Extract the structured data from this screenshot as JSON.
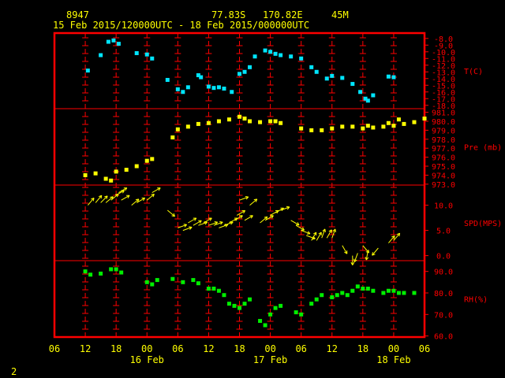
{
  "header": {
    "station_id": "8947",
    "lat": "77.83S",
    "lon": "170.82E",
    "elevation": "45M",
    "time_range": "15 Feb 2015/120000UTC - 18 Feb 2015/000000UTC"
  },
  "footer": {
    "page_number": "2"
  },
  "colors": {
    "frame": "#ff0000",
    "grid": "#ff0000",
    "text": "#ffff00",
    "axis_text": "#ff0000",
    "temperature": "#00e5ff",
    "pressure": "#ffff00",
    "wind": "#ffff00",
    "humidity": "#00ee00"
  },
  "chart_data": {
    "type": "scatter",
    "x_unit": "hours since 15 Feb 2015 12:00 UTC",
    "x_range": [
      -6,
      66
    ],
    "x_tick_labels": [
      {
        "x": -6,
        "label": "06"
      },
      {
        "x": 0,
        "label": "12"
      },
      {
        "x": 6,
        "label": "18"
      },
      {
        "x": 12,
        "label": "00"
      },
      {
        "x": 18,
        "label": "06"
      },
      {
        "x": 24,
        "label": "12"
      },
      {
        "x": 30,
        "label": "18"
      },
      {
        "x": 36,
        "label": "00"
      },
      {
        "x": 42,
        "label": "06"
      },
      {
        "x": 48,
        "label": "12"
      },
      {
        "x": 54,
        "label": "18"
      },
      {
        "x": 60,
        "label": "00"
      },
      {
        "x": 66,
        "label": "06"
      }
    ],
    "date_labels": [
      {
        "x": 12,
        "label": "16 Feb"
      },
      {
        "x": 36,
        "label": "17 Feb"
      },
      {
        "x": 60,
        "label": "18 Feb"
      }
    ],
    "panels": [
      {
        "name": "temperature",
        "label": "T(C)",
        "y_range": [
          -18.5,
          -7.2
        ],
        "ticks": [
          {
            "v": -8,
            "label": "-8.0"
          },
          {
            "v": -9,
            "label": "-9.0"
          },
          {
            "v": -10,
            "label": "-10.0"
          },
          {
            "v": -11,
            "label": "-11.0"
          },
          {
            "v": -12,
            "label": "-12.0"
          },
          {
            "v": -13,
            "label": "-13.0"
          },
          {
            "v": -14,
            "label": "-14.0"
          },
          {
            "v": -15,
            "label": "-15.0"
          },
          {
            "v": -16,
            "label": "-16.0"
          },
          {
            "v": -17,
            "label": "-17.0"
          },
          {
            "v": -18,
            "label": "-18.0"
          }
        ],
        "points": [
          [
            0.5,
            -12.8
          ],
          [
            3,
            -10.5
          ],
          [
            4.5,
            -8.5
          ],
          [
            5.5,
            -8.3
          ],
          [
            6.5,
            -8.8
          ],
          [
            10,
            -10.2
          ],
          [
            12,
            -10.4
          ],
          [
            13,
            -11
          ],
          [
            16,
            -14.2
          ],
          [
            18,
            -15.6
          ],
          [
            19,
            -16
          ],
          [
            20,
            -15.3
          ],
          [
            22,
            -13.5
          ],
          [
            22.5,
            -13.8
          ],
          [
            24,
            -15.2
          ],
          [
            25,
            -15.4
          ],
          [
            26,
            -15.3
          ],
          [
            27,
            -15.5
          ],
          [
            28.5,
            -16
          ],
          [
            30,
            -13.3
          ],
          [
            31,
            -13
          ],
          [
            32,
            -12.3
          ],
          [
            33,
            -10.7
          ],
          [
            35,
            -9.8
          ],
          [
            36,
            -10
          ],
          [
            37,
            -10.3
          ],
          [
            38,
            -10.5
          ],
          [
            40,
            -10.7
          ],
          [
            42,
            -11
          ],
          [
            44,
            -12.3
          ],
          [
            45,
            -13
          ],
          [
            47,
            -14
          ],
          [
            48,
            -13.6
          ],
          [
            50,
            -13.9
          ],
          [
            52,
            -14.8
          ],
          [
            53.5,
            -16
          ],
          [
            54.5,
            -17
          ],
          [
            55,
            -17.3
          ],
          [
            56,
            -16.5
          ],
          [
            59,
            -13.7
          ],
          [
            60,
            -13.8
          ]
        ]
      },
      {
        "name": "pressure",
        "label": "Pre (mb)",
        "y_range": [
          972.9,
          981.4
        ],
        "ticks": [
          {
            "v": 973,
            "label": "973.0"
          },
          {
            "v": 974,
            "label": "974.0"
          },
          {
            "v": 975,
            "label": "975.0"
          },
          {
            "v": 976,
            "label": "976.0"
          },
          {
            "v": 977,
            "label": "977.0"
          },
          {
            "v": 978,
            "label": "978.0"
          },
          {
            "v": 979,
            "label": "979.0"
          },
          {
            "v": 980,
            "label": "980.0"
          },
          {
            "v": 981,
            "label": "981.0"
          }
        ],
        "points": [
          [
            0,
            974
          ],
          [
            2,
            974.2
          ],
          [
            4,
            973.6
          ],
          [
            5,
            973.4
          ],
          [
            6,
            974.4
          ],
          [
            8,
            974.6
          ],
          [
            10,
            975
          ],
          [
            12,
            975.6
          ],
          [
            13,
            975.8
          ],
          [
            17,
            978.2
          ],
          [
            18,
            979.1
          ],
          [
            20,
            979.4
          ],
          [
            22,
            979.7
          ],
          [
            24,
            979.8
          ],
          [
            26,
            980
          ],
          [
            28,
            980.2
          ],
          [
            30,
            980.5
          ],
          [
            31,
            980.3
          ],
          [
            32,
            980
          ],
          [
            34,
            979.9
          ],
          [
            36,
            980
          ],
          [
            37,
            980
          ],
          [
            38,
            979.8
          ],
          [
            42,
            979.2
          ],
          [
            44,
            979
          ],
          [
            46,
            979
          ],
          [
            48,
            979.2
          ],
          [
            50,
            979.4
          ],
          [
            52,
            979.4
          ],
          [
            54,
            979.2
          ],
          [
            56,
            979.3
          ],
          [
            58,
            979.4
          ],
          [
            60,
            979.5
          ],
          [
            62,
            979.7
          ],
          [
            64,
            979.9
          ],
          [
            66,
            980.3
          ],
          [
            55,
            979.5
          ],
          [
            59,
            979.8
          ],
          [
            61,
            980.2
          ]
        ]
      },
      {
        "name": "wind_speed",
        "label": "SPD(MPS)",
        "y_range": [
          -1,
          14
        ],
        "ticks": [
          {
            "v": 0,
            "label": "0.0"
          },
          {
            "v": 5,
            "label": "5.0"
          },
          {
            "v": 10,
            "label": "10.0"
          }
        ],
        "vectors": [
          [
            0.5,
            10,
            40
          ],
          [
            2,
            10.5,
            40
          ],
          [
            3,
            10.5,
            45
          ],
          [
            4,
            10.5,
            50
          ],
          [
            5,
            11,
            50
          ],
          [
            6,
            12,
            60
          ],
          [
            6.5,
            12.5,
            60
          ],
          [
            7,
            11,
            60
          ],
          [
            9,
            10,
            50
          ],
          [
            10,
            10.5,
            60
          ],
          [
            12,
            11,
            50
          ],
          [
            13,
            12.5,
            60
          ],
          [
            16,
            9,
            130
          ],
          [
            18,
            5.5,
            70
          ],
          [
            19,
            5,
            70
          ],
          [
            20,
            6.5,
            60
          ],
          [
            21,
            6,
            60
          ],
          [
            22,
            6,
            70
          ],
          [
            23,
            6.5,
            60
          ],
          [
            24,
            6,
            70
          ],
          [
            25,
            6,
            70
          ],
          [
            26,
            5.5,
            70
          ],
          [
            27,
            6,
            70
          ],
          [
            28,
            6.5,
            60
          ],
          [
            29,
            7,
            60
          ],
          [
            29.5,
            8,
            60
          ],
          [
            30,
            11,
            70
          ],
          [
            31,
            7,
            60
          ],
          [
            32,
            10,
            50
          ],
          [
            34,
            6.5,
            50
          ],
          [
            35,
            7,
            60
          ],
          [
            36,
            8,
            60
          ],
          [
            37,
            8.5,
            60
          ],
          [
            38,
            9,
            70
          ],
          [
            40,
            7,
            120
          ],
          [
            41,
            6,
            120
          ],
          [
            42,
            5,
            110
          ],
          [
            43,
            4,
            110
          ],
          [
            44,
            3,
            30
          ],
          [
            45,
            3,
            30
          ],
          [
            46,
            3.5,
            20
          ],
          [
            47,
            3.5,
            30
          ],
          [
            48,
            3.5,
            20
          ],
          [
            50,
            2,
            150
          ],
          [
            52,
            0,
            180
          ],
          [
            53,
            0.5,
            200
          ],
          [
            54,
            2,
            140
          ],
          [
            55,
            1,
            190
          ],
          [
            57,
            1.5,
            220
          ],
          [
            59,
            2.5,
            40
          ],
          [
            60,
            3,
            40
          ]
        ]
      },
      {
        "name": "humidity",
        "label": "RH(%)",
        "y_range": [
          59.5,
          95
        ],
        "ticks": [
          {
            "v": 60,
            "label": "60.0"
          },
          {
            "v": 70,
            "label": "70.0"
          },
          {
            "v": 80,
            "label": "80.0"
          },
          {
            "v": 90,
            "label": "90.0"
          }
        ],
        "points": [
          [
            0,
            90
          ],
          [
            1,
            88.5
          ],
          [
            3,
            89
          ],
          [
            5,
            91
          ],
          [
            6,
            91
          ],
          [
            7,
            89.5
          ],
          [
            12,
            85
          ],
          [
            13,
            84
          ],
          [
            14,
            86
          ],
          [
            17,
            86.5
          ],
          [
            19,
            85
          ],
          [
            21,
            86
          ],
          [
            22,
            84.5
          ],
          [
            24,
            82
          ],
          [
            25,
            82
          ],
          [
            26,
            81
          ],
          [
            27,
            79
          ],
          [
            28,
            75
          ],
          [
            29,
            74
          ],
          [
            30,
            73
          ],
          [
            31,
            75
          ],
          [
            32,
            77
          ],
          [
            34,
            67
          ],
          [
            35,
            65
          ],
          [
            36,
            70
          ],
          [
            37,
            73
          ],
          [
            38,
            74
          ],
          [
            41,
            71
          ],
          [
            42,
            70
          ],
          [
            44,
            75
          ],
          [
            45,
            77
          ],
          [
            46,
            79
          ],
          [
            48,
            78
          ],
          [
            49,
            79
          ],
          [
            50,
            80
          ],
          [
            51,
            79
          ],
          [
            52,
            81
          ],
          [
            53,
            83
          ],
          [
            54,
            82
          ],
          [
            55,
            82
          ],
          [
            56,
            81
          ],
          [
            58,
            80
          ],
          [
            59,
            81
          ],
          [
            60,
            81
          ],
          [
            61,
            80
          ],
          [
            62,
            80
          ],
          [
            64,
            80
          ]
        ]
      }
    ]
  }
}
